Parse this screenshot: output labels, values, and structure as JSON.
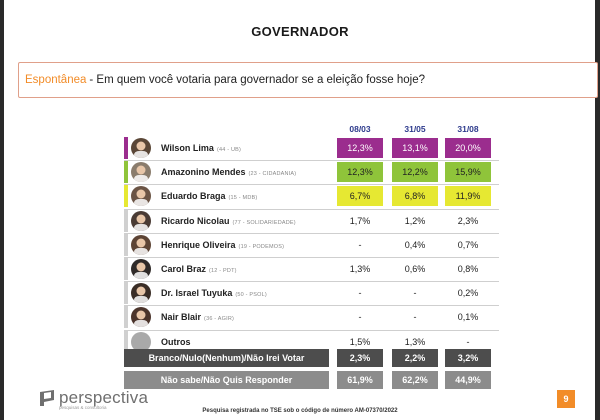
{
  "title": "GOVERNADOR",
  "question": {
    "tag": "Espontânea",
    "text": "- Em quem você votaria para governador se a eleição fosse hoje?"
  },
  "columns": [
    "08/03",
    "31/05",
    "31/08"
  ],
  "candidates": [
    {
      "name": "Wilson Lima",
      "party": "(44 - UB)",
      "values": [
        "12,3%",
        "13,1%",
        "20,0%"
      ],
      "highlight": "#9b2d8e",
      "text_color": "#ffffff",
      "avatar": "#5a4636"
    },
    {
      "name": "Amazonino Mendes",
      "party": "(23 - CIDADANIA)",
      "values": [
        "12,3%",
        "12,2%",
        "15,9%"
      ],
      "highlight": "#8fc43a",
      "text_color": "#222222",
      "avatar": "#8a7c6c"
    },
    {
      "name": "Eduardo Braga",
      "party": "(15 - MDB)",
      "values": [
        "6,7%",
        "6,8%",
        "11,9%"
      ],
      "highlight": "#e6e832",
      "text_color": "#222222",
      "avatar": "#6b5445"
    },
    {
      "name": "Ricardo Nicolau",
      "party": "(77 - SOLIDARIEDADE)",
      "values": [
        "1,7%",
        "1,2%",
        "2,3%"
      ],
      "highlight": "",
      "text_color": "#222222",
      "avatar": "#4a3b34"
    },
    {
      "name": "Henrique Oliveira",
      "party": "(19 - PODEMOS)",
      "values": [
        "-",
        "0,4%",
        "0,7%"
      ],
      "highlight": "",
      "text_color": "#222222",
      "avatar": "#5d4435"
    },
    {
      "name": "Carol Braz",
      "party": "(12 - PDT)",
      "values": [
        "1,3%",
        "0,6%",
        "0,8%"
      ],
      "highlight": "",
      "text_color": "#222222",
      "avatar": "#2f2a28"
    },
    {
      "name": "Dr. Israel Tuyuka",
      "party": "(50 - PSOL)",
      "values": [
        "-",
        "-",
        "0,2%"
      ],
      "highlight": "",
      "text_color": "#222222",
      "avatar": "#3a2d26"
    },
    {
      "name": "Nair Blair",
      "party": "(36 - AGIR)",
      "values": [
        "-",
        "-",
        "0,1%"
      ],
      "highlight": "",
      "text_color": "#222222",
      "avatar": "#4b342b"
    },
    {
      "name": "Outros",
      "party": "",
      "values": [
        "1,5%",
        "1,3%",
        "-"
      ],
      "highlight": "",
      "text_color": "#222222",
      "avatar": "#a9a9a9"
    }
  ],
  "summary_rows": [
    {
      "label": "Branco/Nulo(Nenhum)/Não Irei Votar",
      "values": [
        "2,3%",
        "2,2%",
        "3,2%"
      ],
      "bg": "#4d4d4d"
    },
    {
      "label": "Não sabe/Não Quis Responder",
      "values": [
        "61,9%",
        "62,2%",
        "44,9%"
      ],
      "bg": "#8c8c8c"
    }
  ],
  "logo": {
    "text": "perspectiva",
    "sub": "pesquisas & consultoria"
  },
  "footer_note": "Pesquisa registrada no TSE sob o código de número AM-07370/2022",
  "page_number": "9",
  "colors": {
    "accent": "#f28c28",
    "header_blue": "#2d3a8c"
  }
}
